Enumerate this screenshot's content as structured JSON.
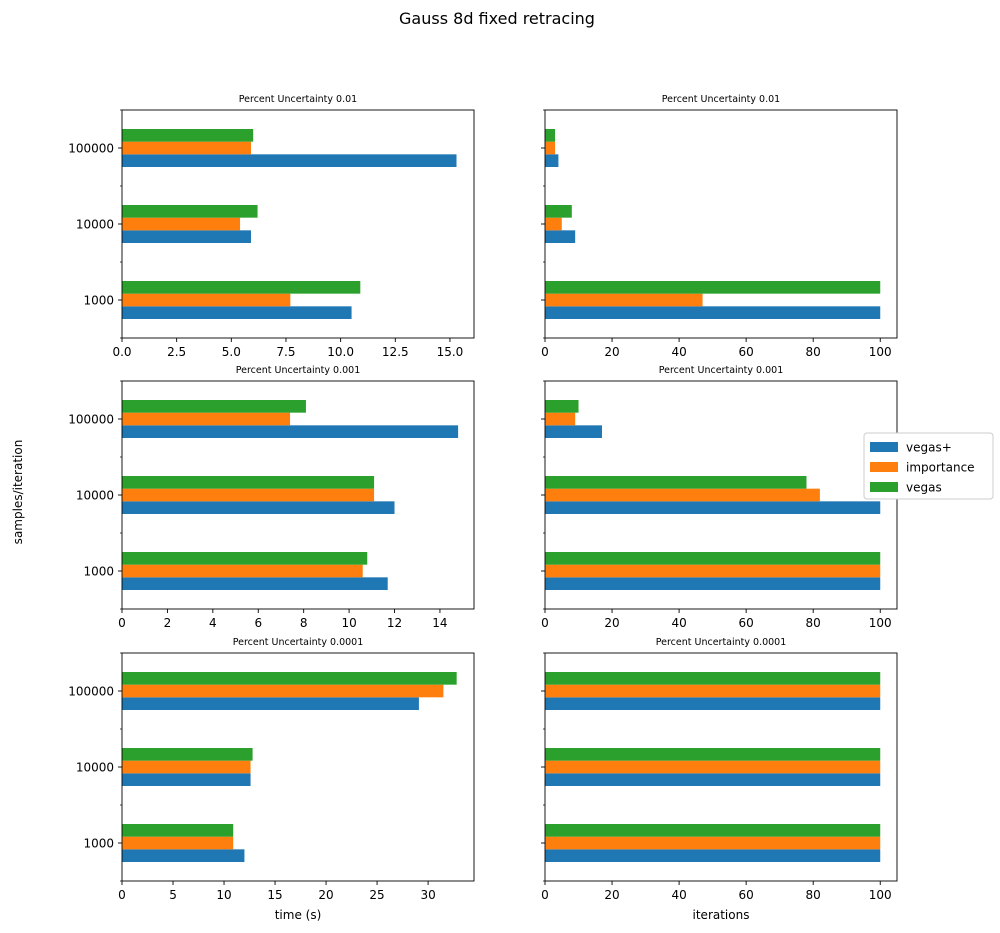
{
  "figure": {
    "title": "Gauss 8d fixed retracing",
    "ylabel": "samples/iteration"
  },
  "colors": {
    "vegas+": "#1f77b4",
    "importance": "#ff7f0e",
    "vegas": "#2ca02c"
  },
  "legend": {
    "placement": "right, outside, middle row",
    "entries": [
      "vegas+",
      "importance",
      "vegas"
    ]
  },
  "chart_data": [
    {
      "type": "bar",
      "orientation": "horizontal",
      "title": "Percent Uncertainty 0.01",
      "xlabel": "",
      "categories": [
        "1000",
        "10000",
        "100000"
      ],
      "xlim": [
        0,
        16.1
      ],
      "xticks": [
        0.0,
        2.5,
        5.0,
        7.5,
        10.0,
        12.5,
        15.0
      ],
      "xtick_labels": [
        "0.0",
        "2.5",
        "5.0",
        "7.5",
        "10.0",
        "12.5",
        "15.0"
      ],
      "show_ytick_labels": true,
      "series": [
        {
          "name": "vegas+",
          "values": [
            10.5,
            5.9,
            15.3
          ]
        },
        {
          "name": "importance",
          "values": [
            7.7,
            5.4,
            5.9
          ]
        },
        {
          "name": "vegas",
          "values": [
            10.9,
            6.2,
            6.0
          ]
        }
      ]
    },
    {
      "type": "bar",
      "orientation": "horizontal",
      "title": "Percent Uncertainty 0.01",
      "xlabel": "",
      "categories": [
        "1000",
        "10000",
        "100000"
      ],
      "xlim": [
        0,
        105
      ],
      "xticks": [
        0,
        20,
        40,
        60,
        80,
        100
      ],
      "xtick_labels": [
        "0",
        "20",
        "40",
        "60",
        "80",
        "100"
      ],
      "show_ytick_labels": false,
      "series": [
        {
          "name": "vegas+",
          "values": [
            100,
            9,
            4
          ]
        },
        {
          "name": "importance",
          "values": [
            47,
            5,
            3
          ]
        },
        {
          "name": "vegas",
          "values": [
            100,
            8,
            3
          ]
        }
      ]
    },
    {
      "type": "bar",
      "orientation": "horizontal",
      "title": "Percent Uncertainty 0.001",
      "xlabel": "",
      "categories": [
        "1000",
        "10000",
        "100000"
      ],
      "xlim": [
        0,
        15.5
      ],
      "xticks": [
        0,
        2,
        4,
        6,
        8,
        10,
        12,
        14
      ],
      "xtick_labels": [
        "0",
        "2",
        "4",
        "6",
        "8",
        "10",
        "12",
        "14"
      ],
      "show_ytick_labels": true,
      "series": [
        {
          "name": "vegas+",
          "values": [
            11.7,
            12.0,
            14.8
          ]
        },
        {
          "name": "importance",
          "values": [
            10.6,
            11.1,
            7.4
          ]
        },
        {
          "name": "vegas",
          "values": [
            10.8,
            11.1,
            8.1
          ]
        }
      ]
    },
    {
      "type": "bar",
      "orientation": "horizontal",
      "title": "Percent Uncertainty 0.001",
      "xlabel": "",
      "categories": [
        "1000",
        "10000",
        "100000"
      ],
      "xlim": [
        0,
        105
      ],
      "xticks": [
        0,
        20,
        40,
        60,
        80,
        100
      ],
      "xtick_labels": [
        "0",
        "20",
        "40",
        "60",
        "80",
        "100"
      ],
      "show_ytick_labels": false,
      "series": [
        {
          "name": "vegas+",
          "values": [
            100,
            100,
            17
          ]
        },
        {
          "name": "importance",
          "values": [
            100,
            82,
            9
          ]
        },
        {
          "name": "vegas",
          "values": [
            100,
            78,
            10
          ]
        }
      ]
    },
    {
      "type": "bar",
      "orientation": "horizontal",
      "title": "Percent Uncertainty 0.0001",
      "xlabel": "time (s)",
      "categories": [
        "1000",
        "10000",
        "100000"
      ],
      "xlim": [
        0,
        34.5
      ],
      "xticks": [
        0,
        5,
        10,
        15,
        20,
        25,
        30
      ],
      "xtick_labels": [
        "0",
        "5",
        "10",
        "15",
        "20",
        "25",
        "30"
      ],
      "show_ytick_labels": true,
      "series": [
        {
          "name": "vegas+",
          "values": [
            12.0,
            12.6,
            29.1
          ]
        },
        {
          "name": "importance",
          "values": [
            10.9,
            12.6,
            31.5
          ]
        },
        {
          "name": "vegas",
          "values": [
            10.9,
            12.8,
            32.8
          ]
        }
      ]
    },
    {
      "type": "bar",
      "orientation": "horizontal",
      "title": "Percent Uncertainty 0.0001",
      "xlabel": "iterations",
      "categories": [
        "1000",
        "10000",
        "100000"
      ],
      "xlim": [
        0,
        105
      ],
      "xticks": [
        0,
        20,
        40,
        60,
        80,
        100
      ],
      "xtick_labels": [
        "0",
        "20",
        "40",
        "60",
        "80",
        "100"
      ],
      "show_ytick_labels": false,
      "series": [
        {
          "name": "vegas+",
          "values": [
            100,
            100,
            100
          ]
        },
        {
          "name": "importance",
          "values": [
            100,
            100,
            100
          ]
        },
        {
          "name": "vegas",
          "values": [
            100,
            100,
            100
          ]
        }
      ]
    }
  ]
}
